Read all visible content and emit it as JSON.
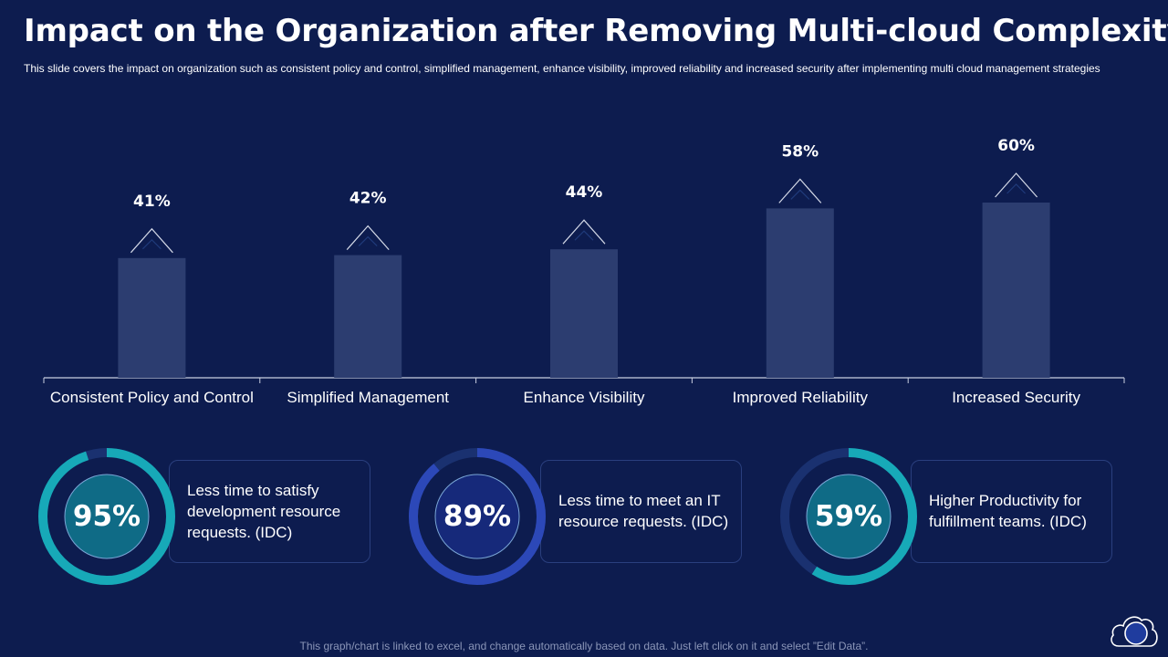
{
  "header": {
    "title": "Impact on the Organization after Removing Multi-cloud Complexity",
    "subtitle": "This slide covers the impact on organization such as consistent policy and control, simplified management,  enhance visibility, improved  reliability and increased security after implementing multi cloud management strategies"
  },
  "chart_data": {
    "type": "bar",
    "categories": [
      "Consistent Policy and Control",
      "Simplified Management",
      "Enhance Visibility",
      "Improved Reliability",
      "Increased Security"
    ],
    "values": [
      41,
      42,
      44,
      58,
      60
    ],
    "labels": [
      "41%",
      "42%",
      "44%",
      "58%",
      "60%"
    ],
    "ylim": [
      0,
      100
    ],
    "grid": false,
    "bar_color": "#2c3d70"
  },
  "stats": [
    {
      "value": "95%",
      "fraction": 0.95,
      "text": "Less time to satisfy development resource requests. (IDC)",
      "ring_color": "#17a9b8",
      "center_color": "#0f6b86"
    },
    {
      "value": "89%",
      "fraction": 0.89,
      "text": "Less time to meet an IT resource requests. (IDC)",
      "ring_color": "#2c48b8",
      "center_color": "#16297a"
    },
    {
      "value": "59%",
      "fraction": 0.59,
      "text": "Higher Productivity for fulfillment teams. (IDC)",
      "ring_color": "#17a9b8",
      "center_color": "#0f6b86"
    }
  ],
  "footer": "This graph/chart is linked to excel, and change automatically based on data. Just left click on it and select ”Edit Data”.",
  "icons": {
    "corner": "cloud-icon"
  }
}
